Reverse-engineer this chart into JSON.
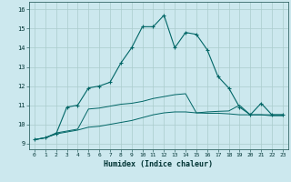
{
  "xlabel": "Humidex (Indice chaleur)",
  "bg_color": "#cce8ee",
  "grid_color": "#aacccc",
  "line_color": "#006666",
  "x_ticks": [
    0,
    1,
    2,
    3,
    4,
    5,
    6,
    7,
    8,
    9,
    10,
    11,
    12,
    13,
    14,
    15,
    16,
    17,
    18,
    19,
    20,
    21,
    22,
    23
  ],
  "y_ticks": [
    9,
    10,
    11,
    12,
    13,
    14,
    15,
    16
  ],
  "ylim": [
    8.7,
    16.4
  ],
  "xlim": [
    -0.5,
    23.5
  ],
  "curve1_x": [
    0,
    1,
    2,
    3,
    4,
    5,
    6,
    7,
    8,
    9,
    10,
    11,
    12,
    13,
    14,
    15,
    16,
    17,
    18,
    19,
    20,
    21,
    22,
    23
  ],
  "curve1_y": [
    9.2,
    9.3,
    9.5,
    10.9,
    11.0,
    11.9,
    12.0,
    12.2,
    13.2,
    14.0,
    15.1,
    15.1,
    15.7,
    14.0,
    14.8,
    14.7,
    13.9,
    12.5,
    11.9,
    10.9,
    10.5,
    11.1,
    10.5,
    10.5
  ],
  "curve2_x": [
    0,
    1,
    2,
    3,
    4,
    5,
    6,
    7,
    8,
    9,
    10,
    11,
    12,
    13,
    14,
    15,
    16,
    17,
    18,
    19,
    20,
    21,
    22,
    23
  ],
  "curve2_y": [
    9.2,
    9.3,
    9.55,
    9.65,
    9.75,
    10.8,
    10.85,
    10.95,
    11.05,
    11.1,
    11.2,
    11.35,
    11.45,
    11.55,
    11.6,
    10.6,
    10.65,
    10.68,
    10.7,
    11.0,
    10.5,
    10.5,
    10.5,
    10.5
  ],
  "curve3_x": [
    0,
    1,
    2,
    3,
    4,
    5,
    6,
    7,
    8,
    9,
    10,
    11,
    12,
    13,
    14,
    15,
    16,
    17,
    18,
    19,
    20,
    21,
    22,
    23
  ],
  "curve3_y": [
    9.2,
    9.3,
    9.5,
    9.6,
    9.7,
    9.85,
    9.9,
    10.0,
    10.1,
    10.2,
    10.35,
    10.5,
    10.6,
    10.65,
    10.65,
    10.6,
    10.58,
    10.58,
    10.55,
    10.5,
    10.5,
    10.5,
    10.45,
    10.45
  ]
}
